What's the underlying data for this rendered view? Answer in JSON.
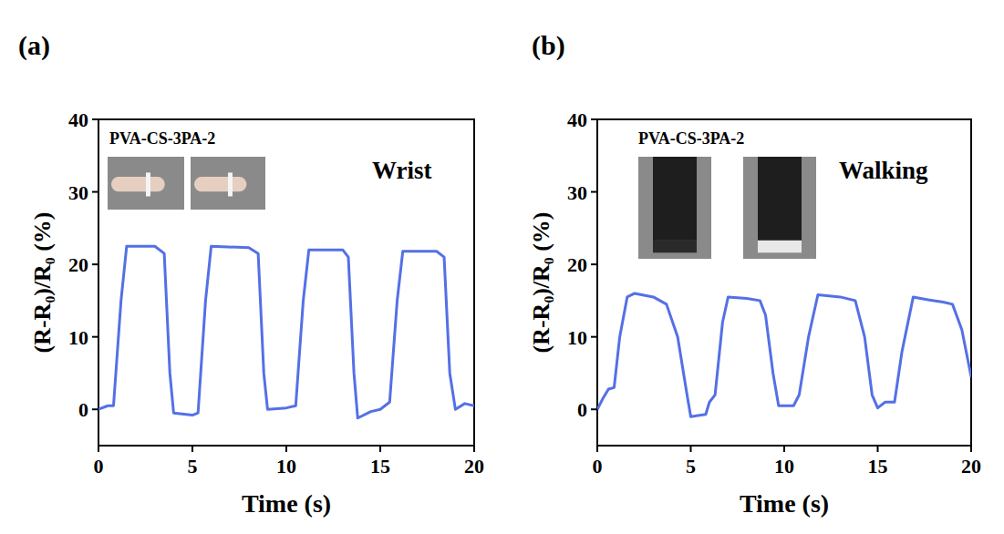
{
  "chart_data": [
    {
      "type": "line",
      "panel_label": "(a)",
      "sample_label": "PVA-CS-3PA-2",
      "annotation": "Wrist",
      "x_label": "Time (s)",
      "y_label": "(R-R₀)/R₀ (%)",
      "color": "#5470e6",
      "xlim": [
        0,
        20
      ],
      "xticks": [
        0,
        5,
        10,
        15,
        20
      ],
      "ylim": [
        -5,
        40
      ],
      "yticks": [
        0,
        10,
        20,
        30,
        40
      ],
      "x": [
        0,
        0.5,
        0.8,
        1.2,
        1.5,
        3,
        3.5,
        3.8,
        4,
        5,
        5.3,
        5.7,
        6,
        8,
        8.5,
        8.8,
        9,
        10,
        10.5,
        10.9,
        11.2,
        13,
        13.3,
        13.6,
        13.8,
        14.5,
        15,
        15.5,
        15.9,
        16.2,
        18,
        18.4,
        18.7,
        19,
        19.5,
        20
      ],
      "values": [
        0,
        0.5,
        0.5,
        15,
        22.5,
        22.5,
        21.5,
        5,
        -0.5,
        -0.8,
        -0.5,
        15,
        22.5,
        22.3,
        21.5,
        5,
        0,
        0.2,
        0.5,
        15,
        22,
        22,
        21,
        5,
        -1.2,
        -0.3,
        0,
        1,
        15,
        21.8,
        21.8,
        21,
        5,
        0,
        0.8,
        0.5
      ]
    },
    {
      "type": "line",
      "panel_label": "(b)",
      "sample_label": "PVA-CS-3PA-2",
      "annotation": "Walking",
      "x_label": "Time (s)",
      "y_label": "(R-R₀)/R₀ (%)",
      "color": "#5470e6",
      "xlim": [
        0,
        20
      ],
      "xticks": [
        0,
        5,
        10,
        15,
        20
      ],
      "ylim": [
        -5,
        40
      ],
      "yticks": [
        0,
        10,
        20,
        30,
        40
      ],
      "x": [
        0,
        0.3,
        0.6,
        0.9,
        1.2,
        1.6,
        2,
        3,
        3.7,
        4.3,
        4.8,
        5,
        5.8,
        6,
        6.3,
        6.7,
        7,
        8,
        8.7,
        9,
        9.4,
        9.7,
        10.5,
        10.8,
        11.3,
        11.8,
        13,
        13.8,
        14.3,
        14.7,
        15,
        15.4,
        15.9,
        16.3,
        16.9,
        17.5,
        18.5,
        19,
        19.5,
        20
      ],
      "values": [
        0,
        1.5,
        2.8,
        3,
        10,
        15.5,
        16,
        15.5,
        14.5,
        10,
        2,
        -1,
        -0.7,
        1,
        2,
        12,
        15.5,
        15.3,
        15,
        13,
        5,
        0.5,
        0.5,
        2,
        10,
        15.8,
        15.5,
        15,
        10,
        2,
        0.2,
        1,
        1,
        8,
        15.5,
        15.2,
        14.8,
        14.5,
        11,
        4.5
      ]
    }
  ]
}
